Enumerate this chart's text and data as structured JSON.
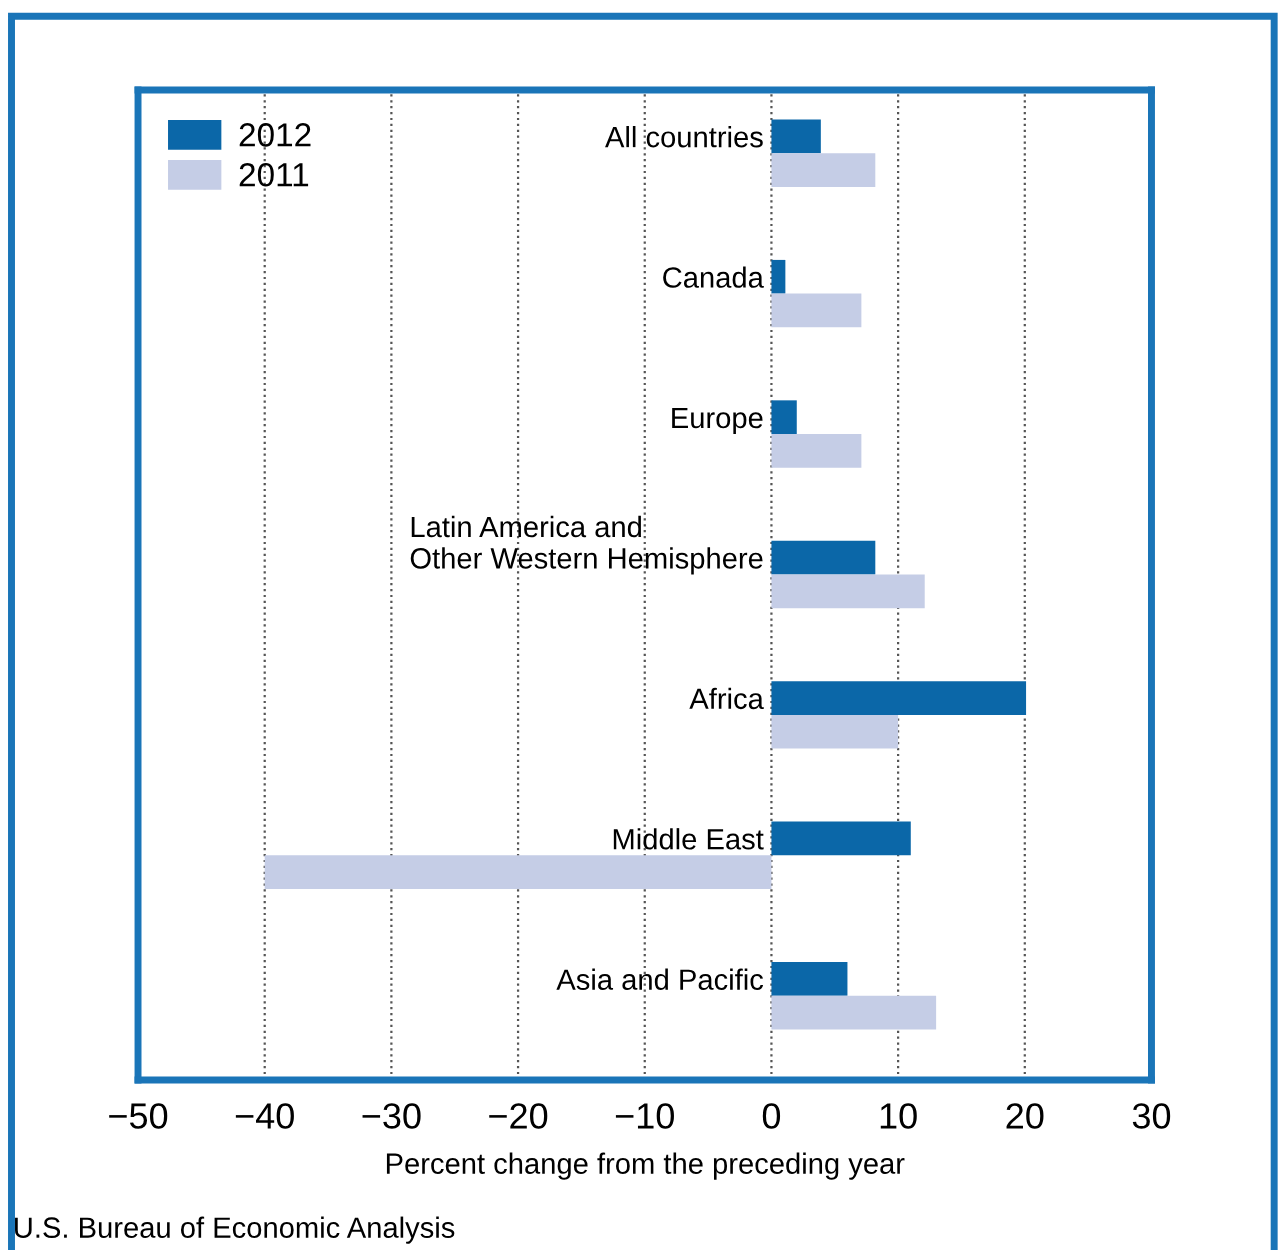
{
  "chart_data": {
    "type": "bar",
    "orientation": "horizontal",
    "categories": [
      "All countries",
      "Canada",
      "Europe",
      "Latin America and\nOther Western Hemisphere",
      "Africa",
      "Middle East",
      "Asia and Pacific"
    ],
    "series": [
      {
        "name": "2012",
        "color": "#0b67a8",
        "values": [
          3.9,
          1.1,
          2.0,
          8.2,
          20.1,
          11.0,
          6.0
        ]
      },
      {
        "name": "2011",
        "color": "#c5cde6",
        "values": [
          8.2,
          7.1,
          7.1,
          12.1,
          10.0,
          -40,
          13.0
        ]
      }
    ],
    "xlim": [
      -50,
      30
    ],
    "xticks": [
      {
        "value": -50,
        "label": "−50"
      },
      {
        "value": -40,
        "label": "−40"
      },
      {
        "value": -30,
        "label": "−30"
      },
      {
        "value": -20,
        "label": "−20"
      },
      {
        "value": -10,
        "label": "−10"
      },
      0,
      10,
      20,
      30
    ],
    "xlabel": "Percent change from the preceding year",
    "grid": "x",
    "legend": "top left",
    "annotations": [
      "U.S. Bureau of Economic Analysis"
    ]
  }
}
